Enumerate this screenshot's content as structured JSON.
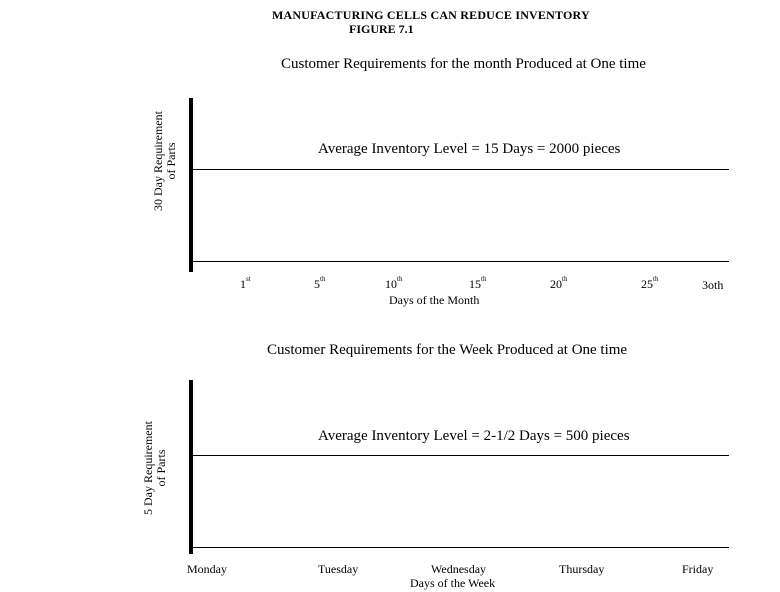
{
  "header": {
    "title": "MANUFACTURING CELLS CAN REDUCE  INVENTORY",
    "figure": "FIGURE  7.1"
  },
  "chart_data": [
    {
      "type": "line",
      "title": "Customer  Requirements for the month Produced at One time",
      "ylabel_line1": "30 Day Requirement",
      "ylabel_line2": "of  Parts",
      "xlabel": "Days of  the Month",
      "annotation": "Average  Inventory  Level  =  15  Days    =  2000  pieces",
      "ticks": [
        {
          "num": "1",
          "suf": "st"
        },
        {
          "num": "5",
          "suf": "th"
        },
        {
          "num": "10",
          "suf": "th"
        },
        {
          "num": "15",
          "suf": "th"
        },
        {
          "num": "20",
          "suf": "th"
        },
        {
          "num": "25",
          "suf": "th"
        },
        {
          "num": "3oth",
          "suf": ""
        }
      ],
      "average_inventory_days": 15,
      "average_inventory_pieces": 2000,
      "requirement_days": 30
    },
    {
      "type": "line",
      "title": "Customer  Requirements for the Week  Produced at One time",
      "ylabel_line1": "5  Day   Requirement",
      "ylabel_line2": "of  Parts",
      "xlabel": "Days of  the Week",
      "annotation": "Average  Inventory  Level  =  2-1/2  Days    =  500  pieces",
      "ticks": [
        {
          "num": "Monday",
          "suf": ""
        },
        {
          "num": "Tuesday",
          "suf": ""
        },
        {
          "num": "Wednesday",
          "suf": ""
        },
        {
          "num": "Thursday",
          "suf": ""
        },
        {
          "num": "Friday",
          "suf": ""
        }
      ],
      "average_inventory_days": 2.5,
      "average_inventory_pieces": 500,
      "requirement_days": 5
    }
  ]
}
